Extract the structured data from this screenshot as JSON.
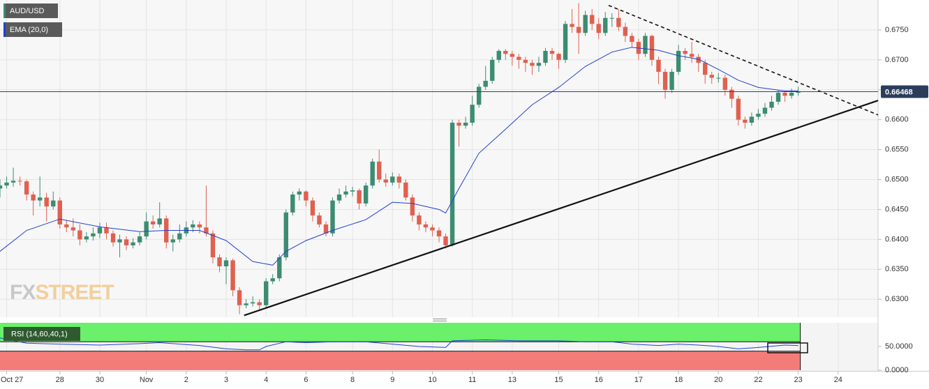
{
  "chart_data": [
    {
      "type": "candlestick",
      "title": "AUD/USD",
      "xlim": [
        0,
        132
      ],
      "xticks": [
        {
          "value": 1,
          "label": "Oct 27"
        },
        {
          "value": 9,
          "label": "28"
        },
        {
          "value": 15,
          "label": "30"
        },
        {
          "value": 22,
          "label": "Nov"
        },
        {
          "value": 28,
          "label": "2"
        },
        {
          "value": 34,
          "label": "3"
        },
        {
          "value": 40,
          "label": "4"
        },
        {
          "value": 46,
          "label": "6"
        },
        {
          "value": 53,
          "label": "8"
        },
        {
          "value": 59,
          "label": "9"
        },
        {
          "value": 65,
          "label": "10"
        },
        {
          "value": 71,
          "label": "11"
        },
        {
          "value": 77,
          "label": "13"
        },
        {
          "value": 84,
          "label": "15"
        },
        {
          "value": 90,
          "label": "16"
        },
        {
          "value": 96,
          "label": "17"
        },
        {
          "value": 102,
          "label": "18"
        },
        {
          "value": 108,
          "label": "20"
        },
        {
          "value": 114,
          "label": "22"
        },
        {
          "value": 120,
          "label": "23"
        },
        {
          "value": 126,
          "label": "24"
        }
      ],
      "ylim": [
        0.627,
        0.68
      ],
      "yticks": [
        {
          "value": 0.63,
          "label": "0.6300"
        },
        {
          "value": 0.635,
          "label": "0.6350"
        },
        {
          "value": 0.64,
          "label": "0.6400"
        },
        {
          "value": 0.645,
          "label": "0.6450"
        },
        {
          "value": 0.65,
          "label": "0.6500"
        },
        {
          "value": 0.655,
          "label": "0.6550"
        },
        {
          "value": 0.66,
          "label": "0.6600"
        },
        {
          "value": 0.665,
          "label": "0.6650"
        },
        {
          "value": 0.67,
          "label": "0.6700"
        },
        {
          "value": 0.675,
          "label": "0.6750"
        }
      ],
      "grid": true,
      "up_color": "#3d8c72",
      "down_color": "#e0604f",
      "open": [
        0.6485,
        0.649,
        0.6495,
        0.6498,
        0.6497,
        0.6475,
        0.6465,
        0.647,
        0.6455,
        0.6465,
        0.6425,
        0.642,
        0.6415,
        0.64,
        0.6405,
        0.641,
        0.642,
        0.641,
        0.6395,
        0.64,
        0.639,
        0.6395,
        0.6405,
        0.643,
        0.6425,
        0.6435,
        0.6395,
        0.64,
        0.641,
        0.642,
        0.6425,
        0.642,
        0.641,
        0.637,
        0.6355,
        0.6365,
        0.6315,
        0.629,
        0.6293,
        0.6295,
        0.629,
        0.633,
        0.6335,
        0.637,
        0.6445,
        0.6475,
        0.648,
        0.6465,
        0.644,
        0.6425,
        0.641,
        0.6465,
        0.6475,
        0.648,
        0.6482,
        0.646,
        0.649,
        0.653,
        0.65,
        0.6495,
        0.6505,
        0.6495,
        0.647,
        0.644,
        0.6425,
        0.642,
        0.6415,
        0.6405,
        0.639,
        0.6595,
        0.659,
        0.6595,
        0.6625,
        0.6655,
        0.6665,
        0.67,
        0.6715,
        0.671,
        0.6705,
        0.67,
        0.6695,
        0.669,
        0.6695,
        0.6715,
        0.671,
        0.67,
        0.676,
        0.6755,
        0.6745,
        0.6775,
        0.676,
        0.6745,
        0.677,
        0.677,
        0.6755,
        0.674,
        0.673,
        0.671,
        0.674,
        0.67,
        0.668,
        0.665,
        0.668,
        0.6715,
        0.671,
        0.6705,
        0.6695,
        0.6675,
        0.667,
        0.667,
        0.665,
        0.6635,
        0.66,
        0.6595,
        0.6605,
        0.661,
        0.662,
        0.663,
        0.6645,
        0.664,
        0.6645
      ],
      "high": [
        0.65,
        0.6505,
        0.652,
        0.6505,
        0.65,
        0.648,
        0.6505,
        0.6478,
        0.648,
        0.647,
        0.6432,
        0.6435,
        0.6425,
        0.6412,
        0.642,
        0.6428,
        0.6428,
        0.6415,
        0.6408,
        0.6405,
        0.6402,
        0.6412,
        0.6445,
        0.644,
        0.6462,
        0.644,
        0.6408,
        0.6425,
        0.643,
        0.6432,
        0.643,
        0.649,
        0.6415,
        0.6375,
        0.637,
        0.6368,
        0.632,
        0.63,
        0.6305,
        0.63,
        0.6335,
        0.6342,
        0.6375,
        0.645,
        0.648,
        0.6485,
        0.6482,
        0.647,
        0.6445,
        0.643,
        0.647,
        0.6485,
        0.649,
        0.6488,
        0.6485,
        0.6495,
        0.6535,
        0.655,
        0.651,
        0.6512,
        0.651,
        0.65,
        0.6475,
        0.6445,
        0.643,
        0.6425,
        0.642,
        0.641,
        0.66,
        0.66,
        0.6605,
        0.664,
        0.666,
        0.669,
        0.6705,
        0.6718,
        0.6718,
        0.6715,
        0.671,
        0.6705,
        0.67,
        0.6705,
        0.672,
        0.672,
        0.6712,
        0.6765,
        0.6785,
        0.6795,
        0.6782,
        0.6785,
        0.677,
        0.678,
        0.6778,
        0.6785,
        0.6762,
        0.6745,
        0.6735,
        0.6745,
        0.6742,
        0.6705,
        0.6685,
        0.6685,
        0.6725,
        0.672,
        0.673,
        0.671,
        0.67,
        0.668,
        0.6678,
        0.6675,
        0.6655,
        0.664,
        0.6605,
        0.6612,
        0.6618,
        0.6628,
        0.664,
        0.665,
        0.6648,
        0.6652,
        0.6655
      ],
      "low": [
        0.647,
        0.6485,
        0.6488,
        0.649,
        0.6465,
        0.644,
        0.6455,
        0.643,
        0.645,
        0.6418,
        0.6412,
        0.6405,
        0.639,
        0.6395,
        0.6398,
        0.6402,
        0.64,
        0.6388,
        0.637,
        0.6382,
        0.6385,
        0.639,
        0.64,
        0.6418,
        0.642,
        0.6385,
        0.638,
        0.6395,
        0.6405,
        0.6412,
        0.641,
        0.6405,
        0.636,
        0.6345,
        0.6325,
        0.6305,
        0.6275,
        0.6285,
        0.6288,
        0.6282,
        0.6285,
        0.6325,
        0.633,
        0.6365,
        0.644,
        0.6465,
        0.6455,
        0.643,
        0.642,
        0.6405,
        0.6405,
        0.646,
        0.647,
        0.6472,
        0.645,
        0.6455,
        0.6485,
        0.6495,
        0.6488,
        0.649,
        0.6485,
        0.6465,
        0.643,
        0.6415,
        0.6412,
        0.6405,
        0.6395,
        0.6385,
        0.6388,
        0.6555,
        0.6585,
        0.659,
        0.662,
        0.665,
        0.666,
        0.6695,
        0.67,
        0.669,
        0.6685,
        0.668,
        0.6675,
        0.668,
        0.669,
        0.67,
        0.6685,
        0.6695,
        0.6745,
        0.671,
        0.674,
        0.675,
        0.6735,
        0.674,
        0.6755,
        0.6748,
        0.673,
        0.672,
        0.67,
        0.6705,
        0.669,
        0.666,
        0.6635,
        0.6645,
        0.6675,
        0.67,
        0.6695,
        0.668,
        0.666,
        0.666,
        0.6662,
        0.664,
        0.662,
        0.659,
        0.6585,
        0.659,
        0.66,
        0.6605,
        0.6615,
        0.6625,
        0.663,
        0.6635,
        0.664
      ],
      "close": [
        0.649,
        0.6495,
        0.6498,
        0.6497,
        0.6475,
        0.6465,
        0.647,
        0.6455,
        0.6465,
        0.6425,
        0.642,
        0.6415,
        0.64,
        0.6405,
        0.641,
        0.642,
        0.641,
        0.6395,
        0.64,
        0.639,
        0.6395,
        0.6405,
        0.643,
        0.6425,
        0.6435,
        0.6395,
        0.64,
        0.641,
        0.642,
        0.6425,
        0.642,
        0.641,
        0.637,
        0.6355,
        0.6365,
        0.6315,
        0.629,
        0.6293,
        0.6295,
        0.629,
        0.633,
        0.6335,
        0.637,
        0.6445,
        0.6475,
        0.648,
        0.6465,
        0.644,
        0.6425,
        0.641,
        0.6465,
        0.6475,
        0.648,
        0.6482,
        0.646,
        0.649,
        0.653,
        0.65,
        0.6495,
        0.6505,
        0.6495,
        0.647,
        0.644,
        0.6425,
        0.642,
        0.6415,
        0.6405,
        0.639,
        0.6595,
        0.659,
        0.6595,
        0.6625,
        0.6655,
        0.6665,
        0.67,
        0.6715,
        0.671,
        0.6705,
        0.67,
        0.6695,
        0.669,
        0.6695,
        0.6715,
        0.671,
        0.67,
        0.676,
        0.6755,
        0.6745,
        0.6775,
        0.676,
        0.6745,
        0.677,
        0.677,
        0.6755,
        0.674,
        0.673,
        0.671,
        0.674,
        0.67,
        0.668,
        0.665,
        0.668,
        0.6715,
        0.671,
        0.6705,
        0.6695,
        0.6675,
        0.667,
        0.667,
        0.665,
        0.6635,
        0.66,
        0.6595,
        0.6605,
        0.661,
        0.662,
        0.663,
        0.6645,
        0.664,
        0.6645,
        0.6647
      ],
      "series": [
        {
          "name": "EMA (20,0)",
          "color": "#2040d0",
          "x": [
            0,
            4,
            9,
            15,
            21,
            25,
            30,
            34,
            38,
            41,
            43,
            46,
            50,
            55,
            59,
            62,
            66,
            67,
            69,
            72,
            76,
            80,
            84,
            88,
            92,
            95,
            99,
            102,
            105,
            108,
            111,
            114,
            118,
            120
          ],
          "values": [
            0.638,
            0.6415,
            0.6434,
            0.6421,
            0.6413,
            0.6415,
            0.6415,
            0.6398,
            0.6363,
            0.6357,
            0.638,
            0.6398,
            0.6415,
            0.6433,
            0.6462,
            0.646,
            0.645,
            0.6444,
            0.6485,
            0.6544,
            0.6584,
            0.6625,
            0.6654,
            0.6689,
            0.6713,
            0.6721,
            0.6716,
            0.6707,
            0.6701,
            0.6684,
            0.6666,
            0.6654,
            0.6648,
            0.6648
          ]
        }
      ],
      "last_price": 0.66468,
      "trendlines": [
        {
          "x": [
            36.7,
            132
          ],
          "values": [
            0.6273,
            0.6632
          ],
          "style": "solid"
        },
        {
          "x": [
            91.5,
            132
          ],
          "values": [
            0.6791,
            0.6608
          ],
          "style": "dashed"
        }
      ],
      "watermark": [
        "FX",
        "STREET"
      ]
    },
    {
      "type": "line",
      "xlim": [
        0,
        132
      ],
      "ylim": [
        0,
        100
      ],
      "yticks": [
        {
          "value": 50,
          "label": "50.0000"
        },
        {
          "value": 0,
          "label": "0.0000"
        }
      ],
      "zones": {
        "upper": 60,
        "lower": 40,
        "upper_color": "#6af06a",
        "lower_color": "#f47c78"
      },
      "series": [
        {
          "name": "RSI (14,60,40,1)",
          "color": "#2040d0",
          "x": [
            0,
            4,
            9,
            15,
            21,
            24,
            30,
            34,
            37,
            39,
            40,
            43,
            46,
            50,
            55,
            59,
            63,
            67,
            68,
            73,
            78,
            84,
            88,
            92,
            95,
            99,
            102,
            105,
            108,
            111,
            114,
            118,
            120
          ],
          "values": [
            68,
            57,
            55,
            53,
            56,
            58,
            52,
            45,
            43,
            43,
            50,
            60,
            58,
            60,
            60,
            55,
            50,
            48,
            62,
            64,
            62,
            62,
            60,
            60,
            55,
            52,
            55,
            53,
            50,
            45,
            48,
            53,
            52
          ]
        }
      ]
    }
  ]
}
